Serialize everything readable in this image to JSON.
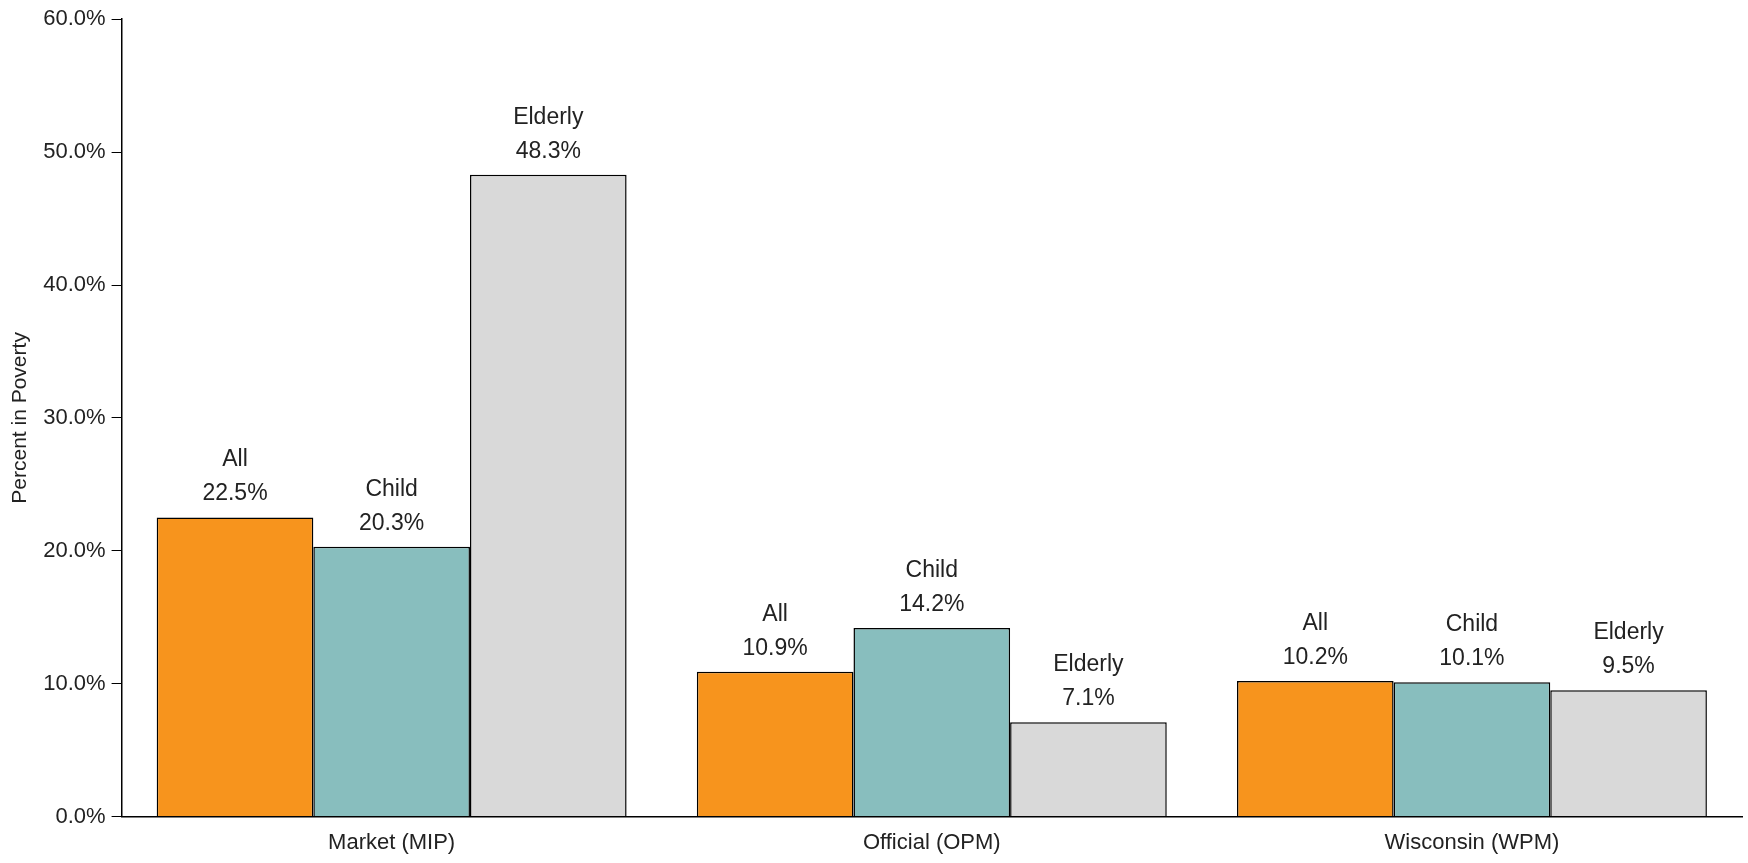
{
  "chart_data": {
    "type": "bar",
    "ylabel": "Percent in Poverty",
    "categories": [
      "Market (MIP)",
      "Official (OPM)",
      "Wisconsin (WPM)"
    ],
    "series": [
      {
        "name": "All",
        "color": "#f7941d",
        "values": [
          22.5,
          10.9,
          10.2
        ],
        "value_labels": [
          "22.5%",
          "10.9%",
          "10.2%"
        ]
      },
      {
        "name": "Child",
        "color": "#88bebe",
        "values": [
          20.3,
          14.2,
          10.1
        ],
        "value_labels": [
          "20.3%",
          "14.2%",
          "10.1%"
        ]
      },
      {
        "name": "Elderly",
        "color": "#d9d9d9",
        "values": [
          48.3,
          7.1,
          9.5
        ],
        "value_labels": [
          "48.3%",
          "7.1%",
          "9.5%"
        ]
      }
    ],
    "ylim": [
      0,
      60
    ],
    "yticks": [
      {
        "value": 0,
        "label": "0.0%"
      },
      {
        "value": 10,
        "label": "10.0%"
      },
      {
        "value": 20,
        "label": "20.0%"
      },
      {
        "value": 30,
        "label": "30.0%"
      },
      {
        "value": 40,
        "label": "40.0%"
      },
      {
        "value": 50,
        "label": "50.0%"
      },
      {
        "value": 60,
        "label": "60.0%"
      }
    ],
    "grid": false,
    "legend": false
  }
}
